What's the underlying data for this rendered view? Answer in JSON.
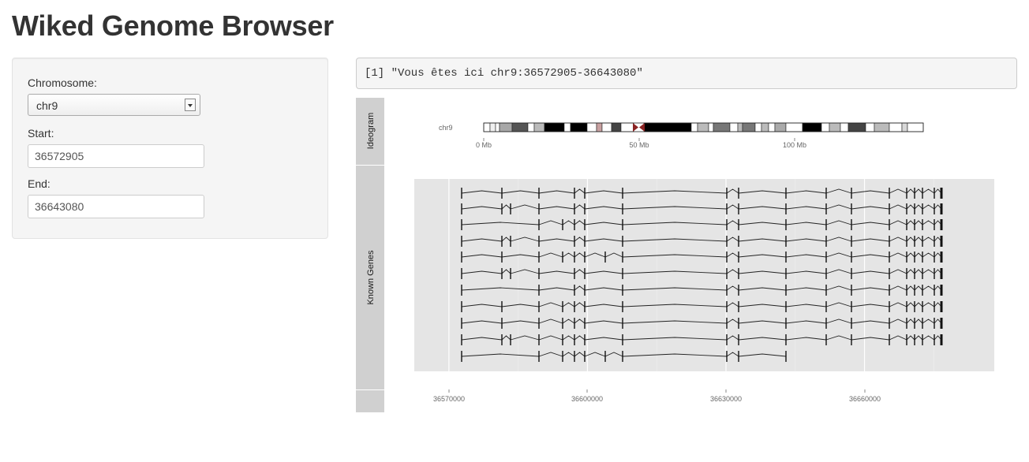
{
  "app": {
    "title": "Wiked Genome Browser"
  },
  "sidebar": {
    "chromosome": {
      "label": "Chromosome:",
      "value": "chr9"
    },
    "start": {
      "label": "Start:",
      "value": "36572905"
    },
    "end": {
      "label": "End:",
      "value": "36643080"
    }
  },
  "output": {
    "text": "[1] \"Vous êtes ici chr9:36572905-36643080\""
  },
  "plot": {
    "strip_labels": [
      "Ideogram",
      "Known Genes"
    ],
    "ideogram": {
      "chromosome_label": "chr9",
      "ticks": [
        "0 Mb",
        "50 Mb",
        "100 Mb"
      ]
    },
    "genes": {
      "x_ticks": [
        "36570000",
        "36600000",
        "36630000",
        "36660000"
      ],
      "x_domain": [
        36562500,
        36688100
      ],
      "row_count": 11
    },
    "colors": {
      "panel_bg": "#e5e5e5",
      "strip_bg": "#d0d0d0",
      "gridline": "#ffffff",
      "centromere": "#8b2323"
    }
  }
}
